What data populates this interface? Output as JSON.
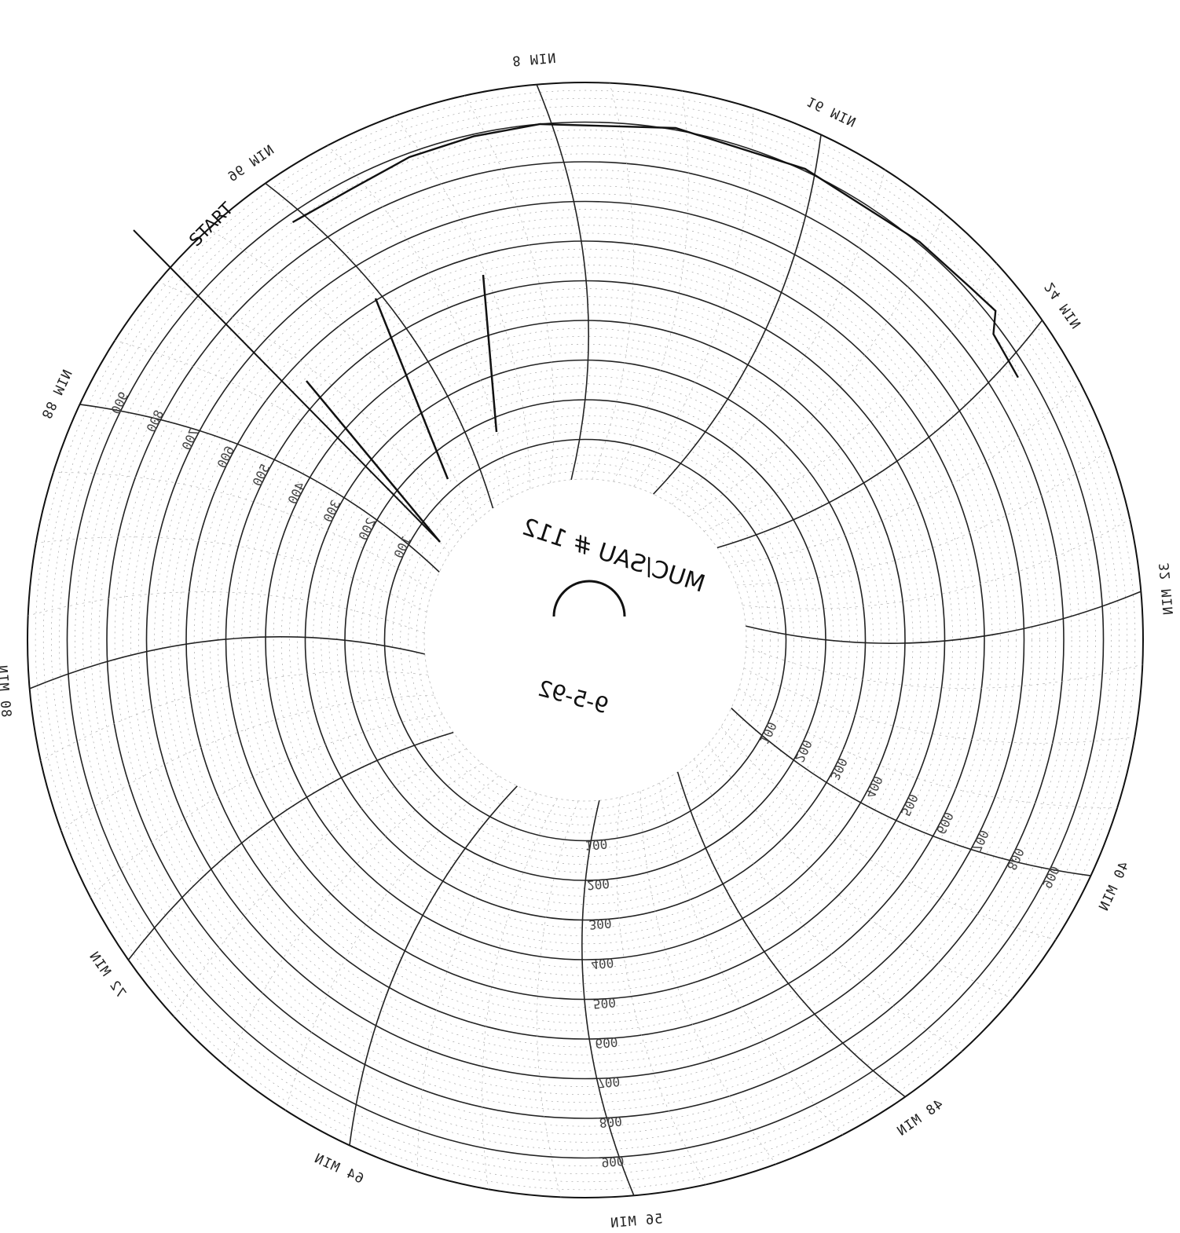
{
  "chart_data": {
    "type": "line",
    "minute_labels": [
      "96 MIN",
      "8 MIN",
      "16 MIN",
      "24 MIN",
      "32 MIN",
      "40 MIN",
      "48 MIN",
      "56 MIN",
      "64 MIN",
      "72 MIN",
      "80 MIN",
      "88 MIN"
    ],
    "minute_values": [
      96,
      8,
      16,
      24,
      32,
      40,
      48,
      56,
      64,
      72,
      80,
      88
    ],
    "temperature_scale": [
      "100",
      "200",
      "300",
      "400",
      "500",
      "600",
      "700",
      "800",
      "900"
    ],
    "temperature_values": [
      100,
      200,
      300,
      400,
      500,
      600,
      700,
      800,
      900
    ],
    "start_label": "START",
    "handwritten": {
      "id_line": "MUC/SAU # 112",
      "date_line": "9-5-92"
    },
    "trace": {
      "name": "",
      "points": [
        {
          "min": 0,
          "temp": 880
        },
        {
          "min": 2,
          "temp": 875
        },
        {
          "min": 4,
          "temp": 890
        },
        {
          "min": 6,
          "temp": 895
        },
        {
          "min": 8,
          "temp": 900
        },
        {
          "min": 12,
          "temp": 905
        },
        {
          "min": 16,
          "temp": 905
        },
        {
          "min": 20,
          "temp": 905
        },
        {
          "min": 22,
          "temp": 910
        },
        {
          "min": 23,
          "temp": 920
        },
        {
          "min": 23.5,
          "temp": 880
        },
        {
          "min": 25,
          "temp": 870
        }
      ]
    },
    "colors": {
      "ink": "#111111",
      "grid": "#555555",
      "paper": "#ffffff"
    }
  }
}
